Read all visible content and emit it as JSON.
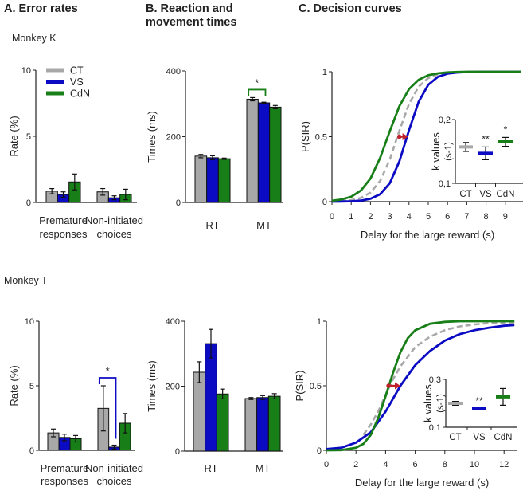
{
  "headers": {
    "a": "A. Error rates",
    "b_line1": "B. Reaction and",
    "b_line2": "movement times",
    "c": "C. Decision curves"
  },
  "monkeys": [
    "Monkey K",
    "Monkey T"
  ],
  "colors": {
    "CT": "#a8a8a8",
    "VS": "#0b0bc4",
    "CdN": "#187f18",
    "significance": "#c0202a"
  },
  "chart_data": [
    {
      "id": "error-rates-monkey-k",
      "type": "bar",
      "ylabel": "Rate (%)",
      "ylim": [
        0,
        10
      ],
      "yticks": [
        0,
        5,
        10
      ],
      "legend": {
        "entries": [
          "CT",
          "VS",
          "CdN"
        ],
        "placement": "top-left"
      },
      "categories": [
        [
          "Premature",
          "responses"
        ],
        [
          "Non-initiated",
          "choices"
        ]
      ],
      "series": [
        {
          "name": "CT",
          "values": [
            0.85,
            0.8
          ],
          "errors": [
            0.2,
            0.25
          ]
        },
        {
          "name": "VS",
          "values": [
            0.6,
            0.35
          ],
          "errors": [
            0.2,
            0.15
          ]
        },
        {
          "name": "CdN",
          "values": [
            1.55,
            0.6
          ],
          "errors": [
            0.6,
            0.4
          ]
        }
      ]
    },
    {
      "id": "times-monkey-k",
      "type": "bar",
      "ylabel": "Times (ms)",
      "ylim": [
        0,
        400
      ],
      "yticks": [
        0,
        200,
        400
      ],
      "categories": [
        [
          "RT"
        ],
        [
          "MT"
        ]
      ],
      "series": [
        {
          "name": "CT",
          "values": [
            141,
            314
          ],
          "errors": [
            5,
            5
          ]
        },
        {
          "name": "VS",
          "values": [
            136,
            303
          ],
          "errors": [
            6,
            2
          ]
        },
        {
          "name": "CdN",
          "values": [
            133,
            290
          ],
          "errors": [
            2,
            5
          ]
        }
      ],
      "significance": [
        {
          "category": 1,
          "from": "CT",
          "to": "VS",
          "label": "*",
          "bracket_color": "#187f18"
        }
      ]
    },
    {
      "id": "decision-curves-monkey-k",
      "type": "line",
      "ylabel": "P(SIR)",
      "xlabel": "Delay for the large reward (s)",
      "xlim": [
        0,
        9.8
      ],
      "ylim": [
        0,
        1
      ],
      "xticks": [
        0,
        1,
        2,
        3,
        4,
        5,
        6,
        7,
        8,
        9
      ],
      "yticks": [
        {
          "v": 0,
          "t": "0"
        },
        {
          "v": 0.5,
          "t": "0.5"
        },
        {
          "v": 1,
          "t": "1"
        }
      ],
      "series": [
        {
          "name": "CT",
          "style": "dashed",
          "x": [
            0,
            0.5,
            1,
            1.5,
            2,
            2.5,
            3,
            3.5,
            4,
            4.5,
            5,
            5.5,
            6,
            6.5,
            7,
            8,
            9.8
          ],
          "y": [
            0.002,
            0.005,
            0.012,
            0.029,
            0.07,
            0.159,
            0.323,
            0.546,
            0.752,
            0.885,
            0.951,
            0.98,
            0.992,
            0.997,
            0.999,
            1,
            1
          ]
        },
        {
          "name": "VS",
          "style": "solid",
          "x": [
            0,
            0.5,
            1,
            1.5,
            2,
            2.5,
            3,
            3.5,
            4,
            4.5,
            5,
            5.5,
            6,
            6.5,
            7,
            8,
            9.8
          ],
          "y": [
            0,
            0.001,
            0.003,
            0.008,
            0.022,
            0.057,
            0.142,
            0.31,
            0.55,
            0.769,
            0.9,
            0.961,
            0.985,
            0.994,
            0.998,
            1,
            1
          ]
        },
        {
          "name": "CdN",
          "style": "solid",
          "x": [
            0,
            0.5,
            1,
            1.5,
            2,
            2.5,
            3,
            3.5,
            4,
            4.5,
            5,
            5.5,
            6,
            6.5,
            7,
            8,
            9.8
          ],
          "y": [
            0.007,
            0.017,
            0.038,
            0.085,
            0.178,
            0.336,
            0.542,
            0.735,
            0.866,
            0.938,
            0.973,
            0.988,
            0.995,
            0.998,
            1,
            1,
            1
          ]
        }
      ],
      "shift_arrow": {
        "from": 3.5,
        "to": 3.95,
        "y": 0.5
      },
      "inset": {
        "ylabel": "k values",
        "ylabel_unit": "(s-1)",
        "ylim": [
          0.1,
          0.2
        ],
        "yticks": [
          {
            "v": 0.1,
            "t": "0,1"
          },
          {
            "v": 0.2,
            "t": "0,2"
          }
        ],
        "categories": [
          "CT",
          "VS",
          "CdN"
        ],
        "values": [
          0.157,
          0.147,
          0.165
        ],
        "errors": [
          0.007,
          0.01,
          0.007
        ],
        "stars": [
          "",
          "**",
          "*"
        ]
      }
    },
    {
      "id": "error-rates-monkey-t",
      "type": "bar",
      "ylabel": "Rate (%)",
      "ylim": [
        0,
        10
      ],
      "yticks": [
        0,
        5,
        10
      ],
      "categories": [
        [
          "Premature",
          "responses"
        ],
        [
          "Non-initiated",
          "choices"
        ]
      ],
      "series": [
        {
          "name": "CT",
          "values": [
            1.35,
            3.25
          ],
          "errors": [
            0.3,
            1.75
          ]
        },
        {
          "name": "VS",
          "values": [
            1.0,
            0.25
          ],
          "errors": [
            0.25,
            0.15
          ]
        },
        {
          "name": "CdN",
          "values": [
            0.9,
            2.1
          ],
          "errors": [
            0.25,
            0.75
          ]
        }
      ],
      "significance": [
        {
          "category": 1,
          "from": "CT",
          "to": "VS",
          "label": "*",
          "bracket_color": "#0b0bc4"
        }
      ]
    },
    {
      "id": "times-monkey-t",
      "type": "bar",
      "ylabel": "Times (ms)",
      "ylim": [
        0,
        400
      ],
      "yticks": [
        0,
        200,
        400
      ],
      "categories": [
        [
          "RT"
        ],
        [
          "MT"
        ]
      ],
      "series": [
        {
          "name": "CT",
          "values": [
            243,
            162
          ],
          "errors": [
            32,
            3
          ]
        },
        {
          "name": "VS",
          "values": [
            331,
            165
          ],
          "errors": [
            44,
            6
          ]
        },
        {
          "name": "CdN",
          "values": [
            176,
            169
          ],
          "errors": [
            15,
            8
          ]
        }
      ]
    },
    {
      "id": "decision-curves-monkey-t",
      "type": "line",
      "ylabel": "P(SIR)",
      "xlabel": "Delay for the large reward (s)",
      "xlim": [
        0,
        12.7
      ],
      "ylim": [
        0,
        1
      ],
      "xticks": [
        0,
        2,
        4,
        6,
        8,
        10,
        12
      ],
      "yticks": [
        {
          "v": 0,
          "t": "0"
        },
        {
          "v": 0.5,
          "t": "0.5"
        },
        {
          "v": 1,
          "t": "1"
        }
      ],
      "series": [
        {
          "name": "CT",
          "style": "dashed",
          "x": [
            2.5,
            3,
            3.5,
            4,
            4.5,
            5,
            6,
            7,
            8,
            9,
            10,
            11,
            12.7
          ],
          "y": [
            0.12,
            0.2,
            0.3,
            0.43,
            0.55,
            0.65,
            0.8,
            0.88,
            0.93,
            0.96,
            0.975,
            0.985,
            0.99
          ]
        },
        {
          "name": "VS",
          "style": "solid",
          "x": [
            0,
            1,
            2,
            3,
            4,
            5,
            6,
            7,
            8,
            9,
            10,
            11,
            12,
            12.7
          ],
          "y": [
            0.01,
            0.02,
            0.06,
            0.14,
            0.3,
            0.5,
            0.66,
            0.77,
            0.85,
            0.9,
            0.93,
            0.95,
            0.965,
            0.97
          ]
        },
        {
          "name": "CdN",
          "style": "solid",
          "x": [
            0,
            1,
            2,
            2.5,
            3,
            3.5,
            4,
            4.5,
            5,
            5.5,
            6,
            7,
            8,
            9,
            12.7
          ],
          "y": [
            0,
            0.002,
            0.02,
            0.05,
            0.12,
            0.25,
            0.42,
            0.6,
            0.76,
            0.87,
            0.93,
            0.98,
            0.995,
            1,
            1
          ]
        }
      ],
      "shift_arrow": {
        "from": 4.2,
        "to": 5.0,
        "y": 0.5
      },
      "inset": {
        "ylabel": "k values",
        "ylabel_unit": "(s-1)",
        "ylim": [
          0.1,
          0.3
        ],
        "yticks": [
          {
            "v": 0.1,
            "t": "0,1"
          },
          {
            "v": 0.3,
            "t": "0,3"
          }
        ],
        "categories": [
          "CT",
          "VS",
          "CdN"
        ],
        "values": [
          0.2,
          0.177,
          0.227
        ],
        "errors": [
          0.008,
          0,
          0.035
        ],
        "stars": [
          "",
          "**",
          ""
        ]
      }
    }
  ]
}
